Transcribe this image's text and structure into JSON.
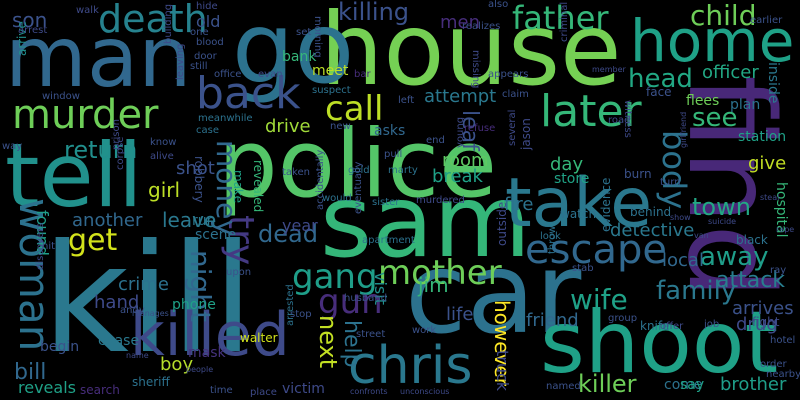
{
  "background": "#000000",
  "words": [
    {
      "text": "police",
      "color": "#54c568"
    },
    {
      "text": "house",
      "color": "#75d054"
    },
    {
      "text": "kill",
      "color": "#2a788e"
    },
    {
      "text": "car",
      "color": "#2c728e"
    },
    {
      "text": "find",
      "color": "#482878"
    },
    {
      "text": "sam",
      "color": "#34b679"
    },
    {
      "text": "go",
      "color": "#2c728e"
    },
    {
      "text": "man",
      "color": "#31688e"
    },
    {
      "text": "tell",
      "color": "#21918c"
    },
    {
      "text": "shoot",
      "color": "#1fa187"
    },
    {
      "text": "take",
      "color": "#2a788e"
    },
    {
      "text": "killed",
      "color": "#3e4a89"
    },
    {
      "text": "home",
      "color": "#1fa187"
    },
    {
      "text": "chris",
      "color": "#2a788e"
    },
    {
      "text": "murder",
      "color": "#6ece58"
    },
    {
      "text": "death",
      "color": "#26828e"
    },
    {
      "text": "back",
      "color": "#3b528b"
    },
    {
      "text": "later",
      "color": "#35b779"
    },
    {
      "text": "woman",
      "color": "#2c728e"
    },
    {
      "text": "escape",
      "color": "#31688e"
    },
    {
      "text": "mother",
      "color": "#6ece58"
    },
    {
      "text": "call",
      "color": "#bddf26"
    },
    {
      "text": "father",
      "color": "#35b779"
    },
    {
      "text": "try",
      "color": "#443983"
    },
    {
      "text": "gang",
      "color": "#1f9e89"
    },
    {
      "text": "gun",
      "color": "#472d7b"
    },
    {
      "text": "money",
      "color": "#31688e"
    },
    {
      "text": "night",
      "color": "#31688e"
    },
    {
      "text": "get",
      "color": "#d2e21b"
    },
    {
      "text": "body",
      "color": "#2c728e"
    },
    {
      "text": "head",
      "color": "#22a884"
    },
    {
      "text": "see",
      "color": "#35b779"
    },
    {
      "text": "child",
      "color": "#6ece58"
    },
    {
      "text": "wife",
      "color": "#1fa187"
    },
    {
      "text": "family",
      "color": "#2a788e"
    },
    {
      "text": "away",
      "color": "#1f9e89"
    },
    {
      "text": "attack",
      "color": "#287d8e"
    },
    {
      "text": "next",
      "color": "#c2df23"
    },
    {
      "text": "help",
      "color": "#2c728e"
    },
    {
      "text": "killer",
      "color": "#6ece58"
    },
    {
      "text": "killing",
      "color": "#3b528b"
    },
    {
      "text": "men",
      "color": "#472d7b"
    },
    {
      "text": "son",
      "color": "#3b528b"
    },
    {
      "text": "return",
      "color": "#218f8d"
    },
    {
      "text": "dead",
      "color": "#31688e"
    },
    {
      "text": "girl",
      "color": "#bddf26"
    },
    {
      "text": "leave",
      "color": "#2a788e"
    },
    {
      "text": "town",
      "color": "#22a884"
    },
    {
      "text": "officer",
      "color": "#22a884"
    },
    {
      "text": "attempt",
      "color": "#2a788e"
    },
    {
      "text": "room",
      "color": "#5ec962"
    },
    {
      "text": "break",
      "color": "#1fa187"
    },
    {
      "text": "drive",
      "color": "#a0da39"
    },
    {
      "text": "day",
      "color": "#35b779"
    },
    {
      "text": "detective",
      "color": "#2a788e"
    },
    {
      "text": "local",
      "color": "#31688e"
    },
    {
      "text": "arrives",
      "color": "#3b528b"
    },
    {
      "text": "friend",
      "color": "#31688e"
    },
    {
      "text": "drug",
      "color": "#3e4a89"
    },
    {
      "text": "brother",
      "color": "#1f9e89"
    },
    {
      "text": "bill",
      "color": "#31688e"
    },
    {
      "text": "boy",
      "color": "#b5de2b"
    },
    {
      "text": "hand",
      "color": "#3e4a89"
    },
    {
      "text": "crime",
      "color": "#2c728e"
    },
    {
      "text": "another",
      "color": "#31688e"
    },
    {
      "text": "shot",
      "color": "#3b528b"
    },
    {
      "text": "found",
      "color": "#1f9e89"
    },
    {
      "text": "jim",
      "color": "#35b779"
    },
    {
      "text": "however",
      "color": "#fde725"
    },
    {
      "text": "life",
      "color": "#3b528b"
    },
    {
      "text": "fire",
      "color": "#2c728e"
    },
    {
      "text": "visit",
      "color": "#218f8d"
    },
    {
      "text": "truck",
      "color": "#3e4a89"
    },
    {
      "text": "reveals",
      "color": "#1fa187"
    },
    {
      "text": "leaf",
      "color": "#3b528b"
    },
    {
      "text": "bank",
      "color": "#35b779"
    },
    {
      "text": "meet",
      "color": "#bddf26"
    },
    {
      "text": "old",
      "color": "#3b528b"
    },
    {
      "text": "year",
      "color": "#3e4a89"
    },
    {
      "text": "give",
      "color": "#c2df23"
    },
    {
      "text": "store",
      "color": "#20a386"
    },
    {
      "text": "plan",
      "color": "#2c728e"
    },
    {
      "text": "station",
      "color": "#1fa187"
    },
    {
      "text": "inside",
      "color": "#2a788e"
    },
    {
      "text": "hospital",
      "color": "#35b779"
    },
    {
      "text": "asks",
      "color": "#31688e"
    },
    {
      "text": "face",
      "color": "#3b528b"
    },
    {
      "text": "flees",
      "color": "#6ece58"
    },
    {
      "text": "walter",
      "color": "#d2e21b"
    },
    {
      "text": "chase",
      "color": "#2a788e"
    },
    {
      "text": "come",
      "color": "#2c728e"
    },
    {
      "text": "say",
      "color": "#1fa187"
    },
    {
      "text": "mask",
      "color": "#46337e"
    },
    {
      "text": "victim",
      "color": "#3e4a89"
    },
    {
      "text": "begin",
      "color": "#3b528b"
    },
    {
      "text": "sheriff",
      "color": "#2c728e"
    },
    {
      "text": "search",
      "color": "#472d7b"
    },
    {
      "text": "phone",
      "color": "#1fa187"
    },
    {
      "text": "scene",
      "color": "#2c728e"
    },
    {
      "text": "run",
      "color": "#2a788e"
    },
    {
      "text": "make",
      "color": "#1fa187"
    },
    {
      "text": "revealed",
      "color": "#35b779"
    },
    {
      "text": "robbery",
      "color": "#3b528b"
    },
    {
      "text": "window",
      "color": "#3b528b"
    },
    {
      "text": "arrive",
      "color": "#218f8d"
    },
    {
      "text": "arrest",
      "color": "#3e4a89"
    },
    {
      "text": "walk",
      "color": "#3e4a89"
    },
    {
      "text": "hide",
      "color": "#3e4a89"
    },
    {
      "text": "one",
      "color": "#3b528b"
    },
    {
      "text": "blood",
      "color": "#3b528b"
    },
    {
      "text": "door",
      "color": "#3b528b"
    },
    {
      "text": "still",
      "color": "#3b528b"
    },
    {
      "text": "office",
      "color": "#3b528b"
    },
    {
      "text": "evan",
      "color": "#3e4a89"
    },
    {
      "text": "set",
      "color": "#3b528b"
    },
    {
      "text": "morning",
      "color": "#3b528b"
    },
    {
      "text": "bar",
      "color": "#472d7b"
    },
    {
      "text": "suspect",
      "color": "#2c728e"
    },
    {
      "text": "new",
      "color": "#3b528b"
    },
    {
      "text": "left",
      "color": "#3b528b"
    },
    {
      "text": "meanwhile",
      "color": "#2c728e"
    },
    {
      "text": "case",
      "color": "#2c728e"
    },
    {
      "text": "know",
      "color": "#3b528b"
    },
    {
      "text": "alive",
      "color": "#3e4a89"
    },
    {
      "text": "pull",
      "color": "#3b528b"
    },
    {
      "text": "end",
      "color": "#3b528b"
    },
    {
      "text": "taken",
      "color": "#3b528b"
    },
    {
      "text": "gold",
      "color": "#2c728e"
    },
    {
      "text": "marty",
      "color": "#2c728e"
    },
    {
      "text": "refuse",
      "color": "#472d7b"
    },
    {
      "text": "young",
      "color": "#3e4a89"
    },
    {
      "text": "several",
      "color": "#3e4a89"
    },
    {
      "text": "jason",
      "color": "#3e4a89"
    },
    {
      "text": "accidentally",
      "color": "#3b528b"
    },
    {
      "text": "would",
      "color": "#2c728e"
    },
    {
      "text": "sister",
      "color": "#2c728e"
    },
    {
      "text": "murdered",
      "color": "#3e4a89"
    },
    {
      "text": "eventually",
      "color": "#3b528b"
    },
    {
      "text": "arrested",
      "color": "#2c728e"
    },
    {
      "text": "husband",
      "color": "#3b528b"
    },
    {
      "text": "apartment",
      "color": "#2c728e"
    },
    {
      "text": "stop",
      "color": "#3b528b"
    },
    {
      "text": "upon",
      "color": "#3b528b"
    },
    {
      "text": "watch",
      "color": "#2c728e"
    },
    {
      "text": "look",
      "color": "#2c728e"
    },
    {
      "text": "outside",
      "color": "#3e4a89"
    },
    {
      "text": "throw",
      "color": "#2c728e"
    },
    {
      "text": "stab",
      "color": "#3b528b"
    },
    {
      "text": "burn",
      "color": "#3b528b"
    },
    {
      "text": "evidence",
      "color": "#2c728e"
    },
    {
      "text": "behind",
      "color": "#2c728e"
    },
    {
      "text": "black",
      "color": "#2c728e"
    },
    {
      "text": "ray",
      "color": "#3b528b"
    },
    {
      "text": "knife",
      "color": "#2c728e"
    },
    {
      "text": "group",
      "color": "#3b528b"
    },
    {
      "text": "offer",
      "color": "#3e4a89"
    },
    {
      "text": "fight",
      "color": "#3e4a89"
    },
    {
      "text": "job",
      "color": "#3b528b"
    },
    {
      "text": "hotel",
      "color": "#3b528b"
    },
    {
      "text": "order",
      "color": "#3b528b"
    },
    {
      "text": "nearby",
      "color": "#3b528b"
    },
    {
      "text": "named",
      "color": "#3b528b"
    },
    {
      "text": "work",
      "color": "#3b528b"
    },
    {
      "text": "confronts",
      "color": "#3e4a89"
    },
    {
      "text": "unconscious",
      "color": "#3e4a89"
    },
    {
      "text": "street",
      "color": "#3b528b"
    },
    {
      "text": "people",
      "color": "#3e4a89"
    },
    {
      "text": "place",
      "color": "#3e4a89"
    },
    {
      "text": "time",
      "color": "#3b528b"
    },
    {
      "text": "andy",
      "color": "#3b528b"
    },
    {
      "text": "discovers",
      "color": "#3e4a89"
    },
    {
      "text": "manages",
      "color": "#3b528b"
    },
    {
      "text": "name",
      "color": "#3e4a89"
    },
    {
      "text": "corpse",
      "color": "#3e4a89"
    },
    {
      "text": "prison",
      "color": "#3e4a89"
    },
    {
      "text": "building",
      "color": "#3e4a89"
    },
    {
      "text": "leaving",
      "color": "#3e4a89"
    },
    {
      "text": "way",
      "color": "#3b528b"
    },
    {
      "text": "hit",
      "color": "#3b528b"
    },
    {
      "text": "also",
      "color": "#3b528b"
    },
    {
      "text": "realizes",
      "color": "#3b528b"
    },
    {
      "text": "missing",
      "color": "#3e4a89"
    },
    {
      "text": "appears",
      "color": "#3b528b"
    },
    {
      "text": "claim",
      "color": "#3b528b"
    },
    {
      "text": "criminal",
      "color": "#3e4a89"
    },
    {
      "text": "witness",
      "color": "#3e4a89"
    },
    {
      "text": "member",
      "color": "#3e4a89"
    },
    {
      "text": "earlier",
      "color": "#3b528b"
    },
    {
      "text": "road",
      "color": "#3e4a89"
    },
    {
      "text": "turn",
      "color": "#3b528b"
    },
    {
      "text": "girlfriend",
      "color": "#3e4a89"
    },
    {
      "text": "show",
      "color": "#3e4a89"
    },
    {
      "text": "suicide",
      "color": "#3e4a89"
    },
    {
      "text": "steal",
      "color": "#3e4a89"
    },
    {
      "text": "van",
      "color": "#3e4a89"
    },
    {
      "text": "rape",
      "color": "#3e4a89"
    }
  ]
}
